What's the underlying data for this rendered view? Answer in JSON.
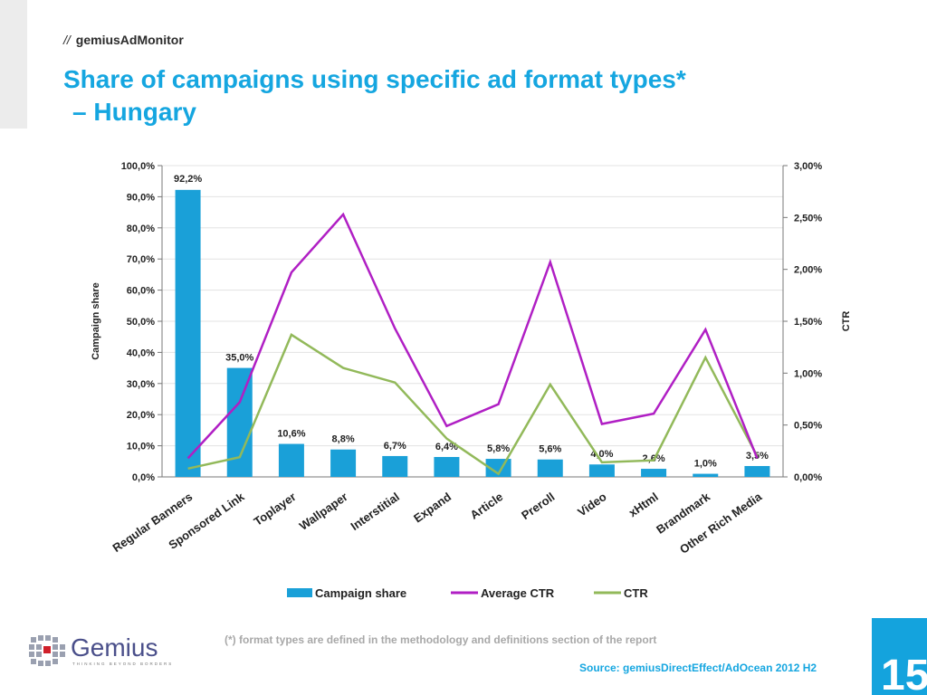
{
  "header": {
    "slashes": "//",
    "brand": "gemiusAdMonitor",
    "title_line1": "Share of campaigns using specific ad format types*",
    "title_line2": "– Hungary"
  },
  "footer": {
    "footnote": "(*)  format types are defined in the methodology and definitions section of the report",
    "source": "Source: gemiusDirectEffect/AdOcean 2012 H2",
    "page_number": "15",
    "logo_text": "Gemius",
    "logo_tagline": "THINKING BEYOND BORDERS"
  },
  "colors": {
    "bar": "#1aa0d8",
    "average_ctr": "#b01fc4",
    "ctr": "#92b95a",
    "accent": "#15a6e0"
  },
  "chart_data": {
    "type": "bar",
    "categories": [
      "Regular Banners",
      "Sponsored Link",
      "Toplayer",
      "Wallpaper",
      "Interstitial",
      "Expand",
      "Article",
      "Preroll",
      "Video",
      "xHtml",
      "Brandmark",
      "Other Rich Media"
    ],
    "series": [
      {
        "name": "Campaign share",
        "type": "bar",
        "axis": "left",
        "values": [
          92.2,
          35.0,
          10.6,
          8.8,
          6.7,
          6.4,
          5.8,
          5.6,
          4.0,
          2.6,
          1.0,
          3.5
        ],
        "data_labels": [
          "92,2%",
          "35,0%",
          "10,6%",
          "8,8%",
          "6,7%",
          "6,4%",
          "5,8%",
          "5,6%",
          "4,0%",
          "2,6%",
          "1,0%",
          "3,5%"
        ]
      },
      {
        "name": "Average CTR",
        "type": "line",
        "axis": "right",
        "values": [
          0.18,
          0.72,
          1.97,
          2.53,
          1.43,
          0.49,
          0.7,
          2.07,
          0.51,
          0.61,
          1.42,
          0.18
        ]
      },
      {
        "name": "CTR",
        "type": "line",
        "axis": "right",
        "values": [
          0.08,
          0.19,
          1.37,
          1.05,
          0.91,
          0.37,
          0.03,
          0.89,
          0.14,
          0.16,
          1.15,
          0.2
        ]
      }
    ],
    "ylabel": "Campaign share",
    "y2label": "CTR",
    "ylim": [
      0,
      100
    ],
    "y2lim": [
      0,
      3
    ],
    "yticks": [
      "0,0%",
      "10,0%",
      "20,0%",
      "30,0%",
      "40,0%",
      "50,0%",
      "60,0%",
      "70,0%",
      "80,0%",
      "90,0%",
      "100,0%"
    ],
    "y2ticks": [
      "0,00%",
      "0,50%",
      "1,00%",
      "1,50%",
      "2,00%",
      "2,50%",
      "3,00%"
    ],
    "grid": true,
    "legend_position": "bottom"
  }
}
